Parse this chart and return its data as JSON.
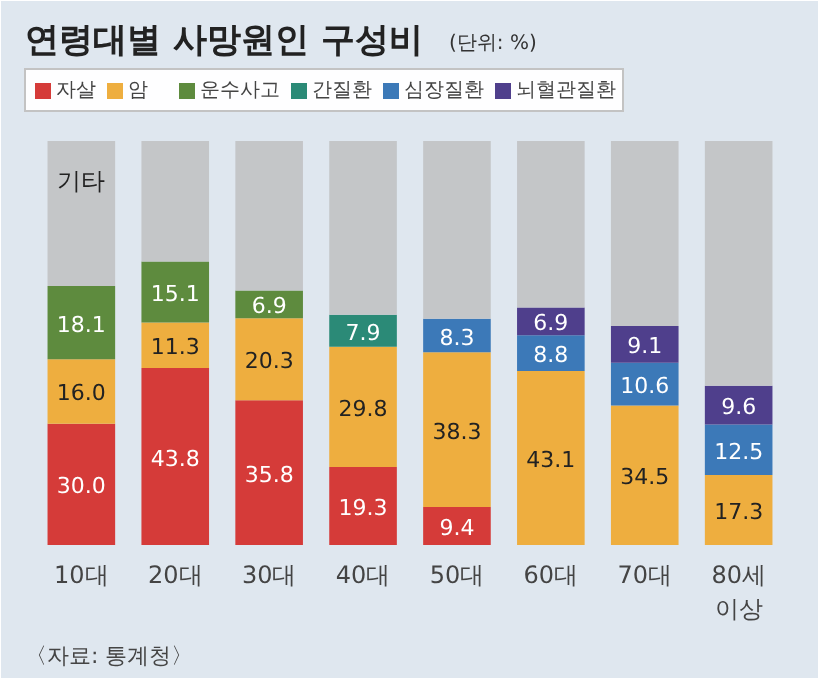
{
  "chart_data": {
    "type": "bar",
    "stacked": true,
    "title": "연령대별 사망원인 구성비",
    "subtitle": "(단위: %)",
    "categories": [
      "10대",
      "20대",
      "30대",
      "40대",
      "50대",
      "60대",
      "70대",
      "80세 이상"
    ],
    "series": [
      {
        "name": "자살",
        "color": "#d53b39",
        "values": [
          30.0,
          43.8,
          35.8,
          19.3,
          9.4,
          null,
          null,
          null
        ],
        "value_labels": [
          "30.0",
          "43.8",
          "35.8",
          "19.3",
          "9.4",
          null,
          null,
          null
        ]
      },
      {
        "name": "암",
        "color": "#eeae3f",
        "values": [
          16.0,
          11.3,
          20.3,
          29.8,
          38.3,
          43.1,
          34.5,
          17.3
        ],
        "value_labels": [
          "16.0",
          "11.3",
          "20.3",
          "29.8",
          "38.3",
          "43.1",
          "34.5",
          "17.3"
        ]
      },
      {
        "name": "운수사고",
        "color": "#5e8b3e",
        "values": [
          18.1,
          15.1,
          6.9,
          null,
          null,
          null,
          null,
          null
        ],
        "value_labels": [
          "18.1",
          "15.1",
          "6.9",
          null,
          null,
          null,
          null,
          null
        ]
      },
      {
        "name": "간질환",
        "color": "#2b8a77",
        "values": [
          null,
          null,
          null,
          7.9,
          null,
          null,
          null,
          null
        ],
        "value_labels": [
          null,
          null,
          null,
          "7.9",
          null,
          null,
          null,
          null
        ]
      },
      {
        "name": "심장질환",
        "color": "#3c79b8",
        "values": [
          null,
          null,
          null,
          null,
          8.3,
          8.8,
          10.6,
          12.5
        ],
        "value_labels": [
          null,
          null,
          null,
          null,
          "8.3",
          "8.8",
          "10.6",
          "12.5"
        ]
      },
      {
        "name": "뇌혈관질환",
        "color": "#4f3f8c",
        "values": [
          null,
          null,
          null,
          null,
          null,
          6.9,
          9.1,
          9.6
        ],
        "value_labels": [
          null,
          null,
          null,
          null,
          null,
          "6.9",
          "9.1",
          "9.6"
        ]
      },
      {
        "color": "#c4c6c8",
        "values": [
          35.9,
          29.8,
          37.0,
          43.0,
          44.0,
          41.2,
          45.8,
          60.6
        ]
      }
    ],
    "annotations": [
      "기타",
      "〈자료: 통계청〉"
    ],
    "legend": "top",
    "grid": false,
    "tick_labels": "x"
  }
}
